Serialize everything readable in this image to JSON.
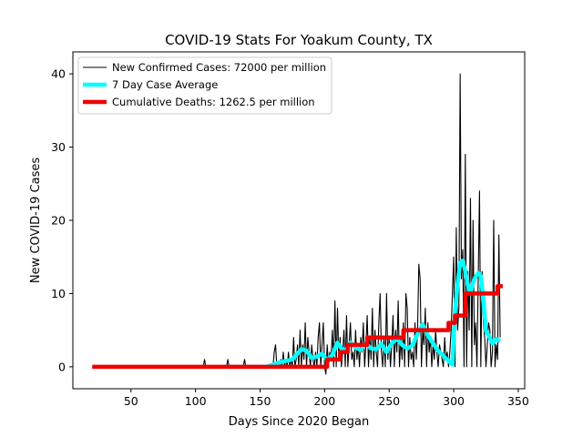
{
  "chart_data": {
    "type": "line",
    "title": "COVID-19 Stats For Yoakum County, TX",
    "xlabel": "Days Since 2020 Began",
    "ylabel": "New COVID-19 Cases",
    "xlim": [
      5,
      355
    ],
    "ylim": [
      -3,
      43
    ],
    "xticks": [
      50,
      100,
      150,
      200,
      250,
      300,
      350
    ],
    "yticks": [
      0,
      10,
      20,
      30,
      40
    ],
    "grid": false,
    "legend_position": "top-left",
    "series": [
      {
        "name": "New Confirmed Cases: 72000 per million",
        "color": "#000000",
        "style": "thin",
        "points": [
          [
            20,
            0
          ],
          [
            106,
            0
          ],
          [
            107,
            1
          ],
          [
            108,
            0
          ],
          [
            124,
            0
          ],
          [
            125,
            1
          ],
          [
            126,
            0
          ],
          [
            137,
            0
          ],
          [
            138,
            1
          ],
          [
            139,
            0
          ],
          [
            160,
            0
          ],
          [
            161,
            2
          ],
          [
            162,
            3
          ],
          [
            163,
            0
          ],
          [
            165,
            0
          ],
          [
            166,
            1
          ],
          [
            167,
            0
          ],
          [
            168,
            2
          ],
          [
            169,
            0
          ],
          [
            170,
            1
          ],
          [
            171,
            0
          ],
          [
            172,
            2
          ],
          [
            173,
            0
          ],
          [
            174,
            1
          ],
          [
            175,
            0
          ],
          [
            176,
            4
          ],
          [
            177,
            0
          ],
          [
            178,
            1
          ],
          [
            179,
            3
          ],
          [
            180,
            0
          ],
          [
            181,
            5
          ],
          [
            182,
            0
          ],
          [
            183,
            3
          ],
          [
            184,
            1
          ],
          [
            185,
            6
          ],
          [
            186,
            0
          ],
          [
            187,
            4
          ],
          [
            188,
            2
          ],
          [
            189,
            0
          ],
          [
            190,
            3
          ],
          [
            191,
            1
          ],
          [
            192,
            0
          ],
          [
            193,
            2
          ],
          [
            194,
            0
          ],
          [
            195,
            4
          ],
          [
            196,
            6
          ],
          [
            197,
            0
          ],
          [
            198,
            3
          ],
          [
            199,
            6
          ],
          [
            200,
            0
          ],
          [
            201,
            -1
          ],
          [
            202,
            3
          ],
          [
            203,
            0
          ],
          [
            204,
            2
          ],
          [
            205,
            1
          ],
          [
            206,
            5
          ],
          [
            207,
            0
          ],
          [
            208,
            9
          ],
          [
            209,
            0
          ],
          [
            210,
            8
          ],
          [
            211,
            1
          ],
          [
            212,
            4
          ],
          [
            213,
            0
          ],
          [
            214,
            2
          ],
          [
            215,
            5
          ],
          [
            216,
            0
          ],
          [
            217,
            7
          ],
          [
            218,
            0
          ],
          [
            219,
            3
          ],
          [
            220,
            6
          ],
          [
            221,
            1
          ],
          [
            222,
            2
          ],
          [
            223,
            0
          ],
          [
            224,
            5
          ],
          [
            225,
            1
          ],
          [
            226,
            3
          ],
          [
            227,
            0
          ],
          [
            228,
            4
          ],
          [
            229,
            2
          ],
          [
            230,
            6
          ],
          [
            231,
            0
          ],
          [
            232,
            3
          ],
          [
            233,
            7
          ],
          [
            234,
            0
          ],
          [
            235,
            4
          ],
          [
            236,
            1
          ],
          [
            237,
            8
          ],
          [
            238,
            0
          ],
          [
            239,
            5
          ],
          [
            240,
            2
          ],
          [
            241,
            0
          ],
          [
            242,
            6
          ],
          [
            243,
            10
          ],
          [
            244,
            2
          ],
          [
            245,
            0
          ],
          [
            246,
            4
          ],
          [
            247,
            0
          ],
          [
            248,
            10
          ],
          [
            249,
            1
          ],
          [
            250,
            4
          ],
          [
            251,
            0
          ],
          [
            252,
            3
          ],
          [
            253,
            7
          ],
          [
            254,
            0
          ],
          [
            255,
            5
          ],
          [
            256,
            2
          ],
          [
            257,
            9
          ],
          [
            258,
            0
          ],
          [
            259,
            4
          ],
          [
            260,
            1
          ],
          [
            261,
            6
          ],
          [
            262,
            0
          ],
          [
            263,
            10
          ],
          [
            264,
            8
          ],
          [
            265,
            0
          ],
          [
            266,
            4
          ],
          [
            267,
            1
          ],
          [
            268,
            2
          ],
          [
            269,
            0
          ],
          [
            270,
            6
          ],
          [
            271,
            1
          ],
          [
            272,
            5
          ],
          [
            273,
            14
          ],
          [
            274,
            12
          ],
          [
            275,
            0
          ],
          [
            276,
            5
          ],
          [
            277,
            3
          ],
          [
            278,
            8
          ],
          [
            279,
            0
          ],
          [
            280,
            6
          ],
          [
            281,
            2
          ],
          [
            282,
            4
          ],
          [
            283,
            0
          ],
          [
            284,
            3
          ],
          [
            285,
            1
          ],
          [
            286,
            5
          ],
          [
            287,
            2
          ],
          [
            288,
            0
          ],
          [
            289,
            3
          ],
          [
            290,
            2
          ],
          [
            291,
            1
          ],
          [
            292,
            0
          ],
          [
            293,
            4
          ],
          [
            294,
            1
          ],
          [
            295,
            2
          ],
          [
            296,
            0
          ],
          [
            297,
            2
          ],
          [
            298,
            5
          ],
          [
            299,
            10
          ],
          [
            300,
            15
          ],
          [
            301,
            0
          ],
          [
            302,
            19
          ],
          [
            303,
            5
          ],
          [
            304,
            8
          ],
          [
            305,
            40
          ],
          [
            306,
            12
          ],
          [
            307,
            16
          ],
          [
            308,
            0
          ],
          [
            309,
            29
          ],
          [
            310,
            0
          ],
          [
            311,
            13
          ],
          [
            312,
            5
          ],
          [
            313,
            23
          ],
          [
            314,
            0
          ],
          [
            315,
            20
          ],
          [
            316,
            3
          ],
          [
            317,
            6
          ],
          [
            318,
            0
          ],
          [
            319,
            12
          ],
          [
            320,
            24
          ],
          [
            321,
            0
          ],
          [
            322,
            13
          ],
          [
            323,
            6
          ],
          [
            324,
            4
          ],
          [
            325,
            0
          ],
          [
            326,
            3
          ],
          [
            327,
            6
          ],
          [
            328,
            5
          ],
          [
            329,
            0
          ],
          [
            330,
            2
          ],
          [
            331,
            20
          ],
          [
            332,
            0
          ],
          [
            333,
            3
          ],
          [
            334,
            1
          ],
          [
            335,
            18
          ],
          [
            336,
            4
          ]
        ]
      },
      {
        "name": "7 Day Case Average",
        "color": "#00ffff",
        "style": "thick",
        "points": [
          [
            125,
            0
          ],
          [
            155,
            0
          ],
          [
            160,
            0.3
          ],
          [
            165,
            0.6
          ],
          [
            170,
            0.8
          ],
          [
            175,
            1
          ],
          [
            178,
            1.6
          ],
          [
            182,
            2.4
          ],
          [
            186,
            2.2
          ],
          [
            190,
            1.2
          ],
          [
            194,
            1.4
          ],
          [
            198,
            1.8
          ],
          [
            202,
            0.9
          ],
          [
            206,
            1.6
          ],
          [
            210,
            3.3
          ],
          [
            213,
            2.5
          ],
          [
            216,
            2.2
          ],
          [
            220,
            3.3
          ],
          [
            224,
            2.6
          ],
          [
            228,
            2.3
          ],
          [
            232,
            3.2
          ],
          [
            236,
            2.5
          ],
          [
            240,
            2.4
          ],
          [
            244,
            3.1
          ],
          [
            248,
            2.0
          ],
          [
            252,
            3.2
          ],
          [
            256,
            3.8
          ],
          [
            260,
            3.0
          ],
          [
            264,
            2.5
          ],
          [
            268,
            2.9
          ],
          [
            272,
            4.5
          ],
          [
            276,
            5.8
          ],
          [
            280,
            4.3
          ],
          [
            284,
            3.2
          ],
          [
            288,
            2.2
          ],
          [
            292,
            1.5
          ],
          [
            296,
            0.8
          ],
          [
            299,
            0.3
          ],
          [
            301,
            7.5
          ],
          [
            303,
            11.3
          ],
          [
            305,
            14.2
          ],
          [
            307,
            14.5
          ],
          [
            309,
            13.0
          ],
          [
            311,
            11.2
          ],
          [
            313,
            10.0
          ],
          [
            315,
            11.5
          ],
          [
            317,
            12.3
          ],
          [
            319,
            12.8
          ],
          [
            321,
            12.4
          ],
          [
            323,
            9.3
          ],
          [
            325,
            4.9
          ],
          [
            327,
            4.3
          ],
          [
            330,
            3.2
          ],
          [
            333,
            3.8
          ],
          [
            336,
            3.5
          ]
        ]
      },
      {
        "name": "Cumulative Deaths: 1262.5 per million",
        "color": "#ee0000",
        "style": "thick",
        "points": [
          [
            20,
            0
          ],
          [
            202,
            0
          ],
          [
            202,
            1
          ],
          [
            212,
            1
          ],
          [
            212,
            2
          ],
          [
            218,
            2
          ],
          [
            218,
            3
          ],
          [
            233,
            3
          ],
          [
            233,
            4
          ],
          [
            261,
            4
          ],
          [
            261,
            5
          ],
          [
            296,
            5
          ],
          [
            296,
            6
          ],
          [
            301,
            6
          ],
          [
            301,
            7
          ],
          [
            309,
            7
          ],
          [
            309,
            10
          ],
          [
            334,
            10
          ],
          [
            334,
            11
          ],
          [
            338,
            11
          ]
        ]
      }
    ]
  }
}
